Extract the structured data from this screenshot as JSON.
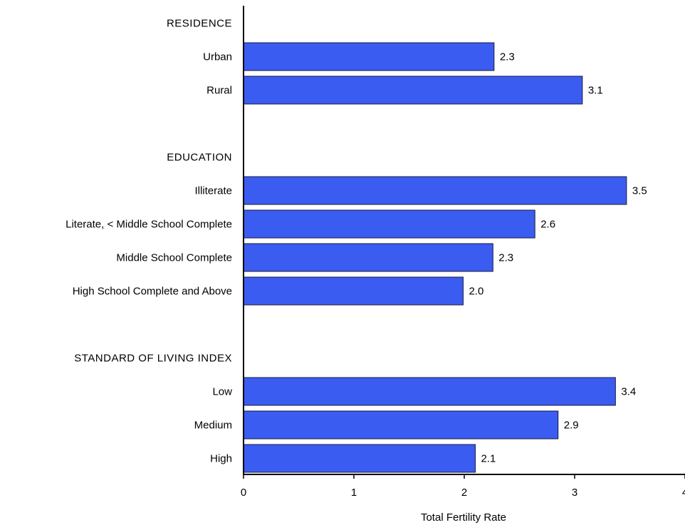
{
  "chart_data": {
    "type": "bar",
    "orientation": "horizontal",
    "title": "",
    "xlabel": "Total Fertility Rate",
    "ylabel": "",
    "xlim": [
      0,
      4
    ],
    "xticks": [
      "0",
      "1",
      "2",
      "3",
      "4"
    ],
    "grid": false,
    "legend": "none",
    "bar_color": "#3b5cf0",
    "rows": [
      {
        "kind": "group",
        "label": "RESIDENCE"
      },
      {
        "kind": "bar",
        "label": "Urban",
        "value": 2.27,
        "value_label": "2.3"
      },
      {
        "kind": "bar",
        "label": "Rural",
        "value": 3.07,
        "value_label": "3.1"
      },
      {
        "kind": "spacer"
      },
      {
        "kind": "group",
        "label": "EDUCATION"
      },
      {
        "kind": "bar",
        "label": "Illiterate",
        "value": 3.47,
        "value_label": "3.5"
      },
      {
        "kind": "bar",
        "label": "Literate, < Middle School Complete",
        "value": 2.64,
        "value_label": "2.6"
      },
      {
        "kind": "bar",
        "label": "Middle School Complete",
        "value": 2.26,
        "value_label": "2.3"
      },
      {
        "kind": "bar",
        "label": "High School Complete and Above",
        "value": 1.99,
        "value_label": "2.0"
      },
      {
        "kind": "spacer"
      },
      {
        "kind": "group",
        "label": "STANDARD OF LIVING INDEX"
      },
      {
        "kind": "bar",
        "label": "Low",
        "value": 3.37,
        "value_label": "3.4"
      },
      {
        "kind": "bar",
        "label": "Medium",
        "value": 2.85,
        "value_label": "2.9"
      },
      {
        "kind": "bar",
        "label": "High",
        "value": 2.1,
        "value_label": "2.1"
      }
    ]
  }
}
